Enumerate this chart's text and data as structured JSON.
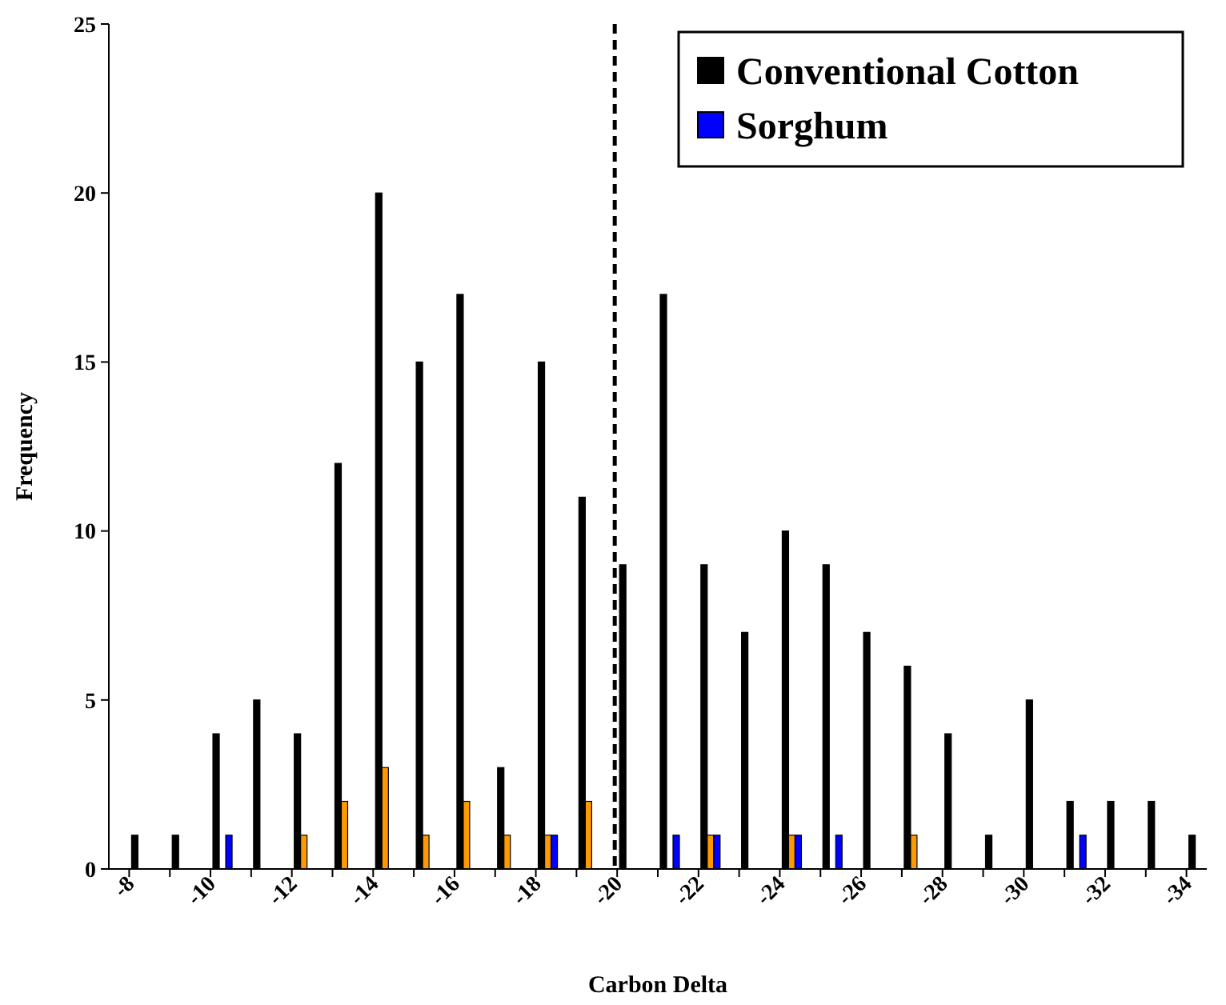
{
  "chart_data": {
    "type": "bar",
    "xlabel": "Carbon Delta",
    "ylabel": "Frequency",
    "categories": [
      "-8",
      null,
      "-10",
      null,
      "-12",
      null,
      "-14",
      null,
      "-16",
      null,
      "-18",
      null,
      "-20",
      null,
      "-22",
      null,
      "-24",
      null,
      "-26",
      null,
      "-28",
      null,
      "-30",
      null,
      "-32",
      null,
      "-34"
    ],
    "series": [
      {
        "name": "Conventional Cotton",
        "color": "#000000",
        "values": [
          1,
          1,
          4,
          5,
          4,
          12,
          20,
          15,
          17,
          3,
          15,
          11,
          9,
          17,
          9,
          7,
          10,
          9,
          7,
          6,
          4,
          1,
          5,
          2,
          2,
          2,
          1
        ]
      },
      {
        "color": "#ff9900",
        "values": [
          0,
          0,
          0,
          0,
          1,
          2,
          3,
          1,
          2,
          1,
          1,
          2,
          0,
          0,
          1,
          0,
          1,
          0,
          0,
          1,
          0,
          0,
          0,
          0,
          0,
          0,
          0
        ]
      },
      {
        "name": "Sorghum",
        "color": "#0000ff",
        "values": [
          0,
          0,
          1,
          0,
          0,
          0,
          0,
          0,
          0,
          0,
          1,
          0,
          0,
          1,
          1,
          0,
          1,
          1,
          0,
          0,
          0,
          0,
          0,
          1,
          0,
          0,
          0
        ]
      }
    ],
    "ylim": [
      0,
      25
    ],
    "yticks": [
      0,
      5,
      10,
      15,
      20,
      25
    ],
    "grid": false,
    "legend": "top right",
    "ref_lines": [
      {
        "axis": "x",
        "value": "-20",
        "color": "#000000",
        "line_style": "dashed"
      }
    ]
  }
}
